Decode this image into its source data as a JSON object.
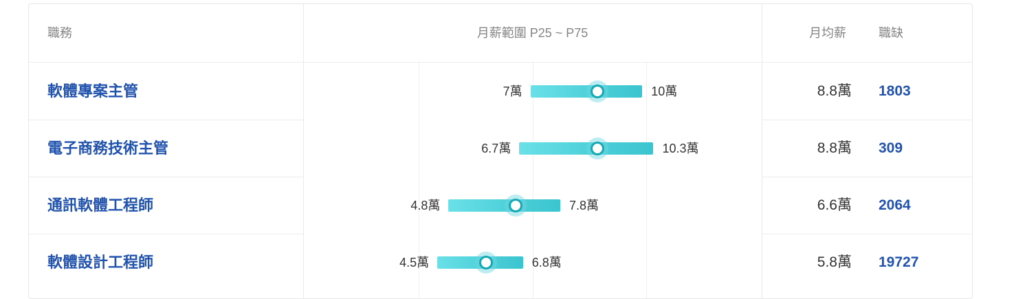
{
  "headers": {
    "job": "職務",
    "range": "月薪範圍 P25 ~ P75",
    "avg": "月均薪",
    "openings": "職缺"
  },
  "colors": {
    "job_link": "#2153ae",
    "bar_start": "#6ae0e8",
    "bar_end": "#3bc4cf",
    "knob_border": "#18a8b4"
  },
  "rows": [
    {
      "title": "軟體專案主管",
      "p25_label": "7萬",
      "p75_label": "10萬",
      "p25": 7,
      "p75": 10,
      "avg_value": 8.8,
      "avg_label": "8.8萬",
      "openings": "1803"
    },
    {
      "title": "電子商務技術主管",
      "p25_label": "6.7萬",
      "p75_label": "10.3萬",
      "p25": 6.7,
      "p75": 10.3,
      "avg_value": 8.8,
      "avg_label": "8.8萬",
      "openings": "309"
    },
    {
      "title": "通訊軟體工程師",
      "p25_label": "4.8萬",
      "p75_label": "7.8萬",
      "p25": 4.8,
      "p75": 7.8,
      "avg_value": 6.6,
      "avg_label": "6.6萬",
      "openings": "2064"
    },
    {
      "title": "軟體設計工程師",
      "p25_label": "4.5萬",
      "p75_label": "6.8萬",
      "p25": 4.5,
      "p75": 6.8,
      "avg_value": 5.8,
      "avg_label": "5.8萬",
      "openings": "19727"
    }
  ]
}
